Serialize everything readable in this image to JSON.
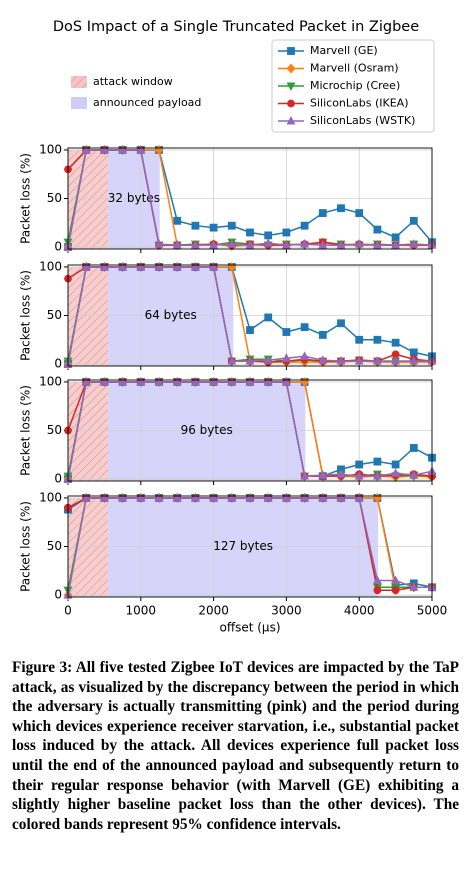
{
  "title": "DoS Impact of a Single Truncated Packet in Zigbee",
  "caption": "Figure 3: All five tested Zigbee IoT devices are impacted by the TaP attack, as visualized by the discrepancy between the period in which the adversary is actually transmitting (pink) and the period during which devices experience receiver starvation, i.e., substantial packet loss induced by the attack. All devices experience full packet loss until the end of the announced payload and subsequently return to their regular response behavior (with Marvell (GE) exhibiting a slightly higher baseline packet loss than the other devices). The colored bands represent 95% confidence intervals.",
  "chart_data": [
    {
      "type": "line",
      "annotation": "32 bytes",
      "ylabel": "Packet loss (%)",
      "grid": true,
      "xlim": [
        0,
        5000
      ],
      "xticks": [
        0,
        1000,
        2000,
        3000,
        4000,
        5000
      ],
      "ylim": [
        -2,
        102
      ],
      "yticks": [
        0,
        50,
        100
      ],
      "regions": [
        {
          "name": "attack window",
          "color": "#f6c4c4",
          "range": [
            0,
            550
          ]
        },
        {
          "name": "announced payload",
          "color": "#cfcdf8",
          "range": [
            550,
            1260
          ]
        }
      ],
      "x": [
        0,
        250,
        500,
        750,
        1000,
        1250,
        1500,
        1750,
        2000,
        2250,
        2500,
        2750,
        3000,
        3250,
        3500,
        3750,
        4000,
        4250,
        4500,
        4750,
        5000
      ],
      "series": [
        {
          "name": "Marvell (GE)",
          "color": "#1f77b4",
          "marker": "s",
          "values": [
            0,
            100,
            100,
            100,
            100,
            100,
            27,
            22,
            20,
            22,
            15,
            12,
            15,
            22,
            35,
            40,
            35,
            18,
            10,
            27,
            5
          ]
        },
        {
          "name": "Marvell (Osram)",
          "color": "#ff7f0e",
          "marker": "D",
          "values": [
            0,
            100,
            100,
            100,
            100,
            100,
            2,
            2,
            3,
            1,
            2,
            2,
            2,
            3,
            2,
            2,
            2,
            2,
            2,
            2,
            2
          ]
        },
        {
          "name": "Microchip (Cree)",
          "color": "#2ca02c",
          "marker": "v",
          "values": [
            5,
            100,
            100,
            100,
            100,
            2,
            2,
            3,
            2,
            5,
            3,
            2,
            3,
            2,
            5,
            3,
            2,
            3,
            2,
            3,
            2
          ]
        },
        {
          "name": "SiliconLabs (IKEA)",
          "color": "#d62728",
          "marker": "o",
          "values": [
            80,
            100,
            100,
            100,
            100,
            2,
            2,
            2,
            3,
            2,
            3,
            2,
            2,
            3,
            5,
            2,
            3,
            2,
            2,
            2,
            2
          ]
        },
        {
          "name": "SiliconLabs (WSTK)",
          "color": "#9467bd",
          "marker": "^",
          "values": [
            0,
            100,
            100,
            100,
            100,
            3,
            2,
            2,
            2,
            3,
            2,
            4,
            2,
            3,
            2,
            2,
            3,
            2,
            2,
            3,
            2
          ]
        }
      ]
    },
    {
      "type": "line",
      "annotation": "64 bytes",
      "ylabel": "Packet loss (%)",
      "grid": true,
      "xlim": [
        0,
        5000
      ],
      "xticks": [
        0,
        1000,
        2000,
        3000,
        4000,
        5000
      ],
      "ylim": [
        -2,
        102
      ],
      "yticks": [
        0,
        50,
        100
      ],
      "regions": [
        {
          "name": "attack window",
          "color": "#f6c4c4",
          "range": [
            0,
            550
          ]
        },
        {
          "name": "announced payload",
          "color": "#cfcdf8",
          "range": [
            550,
            2270
          ]
        }
      ],
      "x": [
        0,
        250,
        500,
        750,
        1000,
        1250,
        1500,
        1750,
        2000,
        2250,
        2500,
        2750,
        3000,
        3250,
        3500,
        3750,
        4000,
        4250,
        4500,
        4750,
        5000
      ],
      "series": [
        {
          "name": "Marvell (GE)",
          "color": "#1f77b4",
          "marker": "s",
          "values": [
            0,
            100,
            100,
            100,
            100,
            100,
            100,
            100,
            100,
            100,
            35,
            48,
            33,
            38,
            30,
            42,
            25,
            25,
            22,
            12,
            8
          ]
        },
        {
          "name": "Marvell (Osram)",
          "color": "#ff7f0e",
          "marker": "D",
          "values": [
            0,
            100,
            100,
            100,
            100,
            100,
            100,
            100,
            100,
            100,
            3,
            2,
            2,
            2,
            2,
            2,
            3,
            2,
            2,
            2,
            2
          ]
        },
        {
          "name": "Microchip (Cree)",
          "color": "#2ca02c",
          "marker": "v",
          "values": [
            3,
            100,
            100,
            100,
            100,
            100,
            100,
            100,
            100,
            3,
            5,
            5,
            3,
            4,
            3,
            3,
            4,
            3,
            3,
            3,
            3
          ]
        },
        {
          "name": "SiliconLabs (IKEA)",
          "color": "#d62728",
          "marker": "o",
          "values": [
            88,
            100,
            100,
            100,
            100,
            100,
            100,
            100,
            100,
            3,
            3,
            2,
            3,
            5,
            3,
            3,
            4,
            3,
            10,
            5,
            3
          ]
        },
        {
          "name": "SiliconLabs (WSTK)",
          "color": "#9467bd",
          "marker": "^",
          "values": [
            0,
            100,
            100,
            100,
            100,
            100,
            100,
            100,
            100,
            3,
            3,
            4,
            6,
            8,
            4,
            3,
            3,
            3,
            3,
            3,
            3
          ]
        }
      ]
    },
    {
      "type": "line",
      "annotation": "96 bytes",
      "ylabel": "Packet loss (%)",
      "grid": true,
      "xlim": [
        0,
        5000
      ],
      "xticks": [
        0,
        1000,
        2000,
        3000,
        4000,
        5000
      ],
      "ylim": [
        -2,
        102
      ],
      "yticks": [
        0,
        50,
        100
      ],
      "regions": [
        {
          "name": "attack window",
          "color": "#f6c4c4",
          "range": [
            0,
            550
          ]
        },
        {
          "name": "announced payload",
          "color": "#cfcdf8",
          "range": [
            550,
            3260
          ]
        }
      ],
      "x": [
        0,
        250,
        500,
        750,
        1000,
        1250,
        1500,
        1750,
        2000,
        2250,
        2500,
        2750,
        3000,
        3250,
        3500,
        3750,
        4000,
        4250,
        4500,
        4750,
        5000
      ],
      "series": [
        {
          "name": "Marvell (GE)",
          "color": "#1f77b4",
          "marker": "s",
          "values": [
            0,
            100,
            100,
            100,
            100,
            100,
            100,
            100,
            100,
            100,
            100,
            100,
            100,
            100,
            3,
            10,
            15,
            18,
            15,
            32,
            22
          ]
        },
        {
          "name": "Marvell (Osram)",
          "color": "#ff7f0e",
          "marker": "D",
          "values": [
            0,
            100,
            100,
            100,
            100,
            100,
            100,
            100,
            100,
            100,
            100,
            100,
            100,
            100,
            3,
            3,
            2,
            3,
            2,
            3,
            2
          ]
        },
        {
          "name": "Microchip (Cree)",
          "color": "#2ca02c",
          "marker": "v",
          "values": [
            3,
            100,
            100,
            100,
            100,
            100,
            100,
            100,
            100,
            100,
            100,
            100,
            100,
            3,
            3,
            4,
            3,
            5,
            3,
            4,
            3
          ]
        },
        {
          "name": "SiliconLabs (IKEA)",
          "color": "#d62728",
          "marker": "o",
          "values": [
            50,
            100,
            100,
            100,
            100,
            100,
            100,
            100,
            100,
            100,
            100,
            100,
            100,
            3,
            3,
            3,
            5,
            3,
            4,
            5,
            3
          ]
        },
        {
          "name": "SiliconLabs (WSTK)",
          "color": "#9467bd",
          "marker": "^",
          "values": [
            0,
            100,
            100,
            100,
            100,
            100,
            100,
            100,
            100,
            100,
            100,
            100,
            100,
            3,
            4,
            5,
            3,
            3,
            6,
            4,
            8
          ]
        }
      ]
    },
    {
      "type": "line",
      "annotation": "127 bytes",
      "ylabel": "Packet loss (%)",
      "xlabel": "offset (μs)",
      "grid": true,
      "xlim": [
        0,
        5000
      ],
      "xticks": [
        0,
        1000,
        2000,
        3000,
        4000,
        5000
      ],
      "ylim": [
        -2,
        102
      ],
      "yticks": [
        0,
        50,
        100
      ],
      "regions": [
        {
          "name": "attack window",
          "color": "#f6c4c4",
          "range": [
            0,
            550
          ]
        },
        {
          "name": "announced payload",
          "color": "#cfcdf8",
          "range": [
            550,
            4260
          ]
        }
      ],
      "x": [
        0,
        250,
        500,
        750,
        1000,
        1250,
        1500,
        1750,
        2000,
        2250,
        2500,
        2750,
        3000,
        3250,
        3500,
        3750,
        4000,
        4250,
        4500,
        4750,
        5000
      ],
      "series": [
        {
          "name": "Marvell (GE)",
          "color": "#1f77b4",
          "marker": "s",
          "values": [
            88,
            100,
            100,
            100,
            100,
            100,
            100,
            100,
            100,
            100,
            100,
            100,
            100,
            100,
            100,
            100,
            100,
            100,
            10,
            12,
            8
          ]
        },
        {
          "name": "Marvell (Osram)",
          "color": "#ff7f0e",
          "marker": "D",
          "values": [
            0,
            100,
            100,
            100,
            100,
            100,
            100,
            100,
            100,
            100,
            100,
            100,
            100,
            100,
            100,
            100,
            100,
            100,
            5,
            8,
            8
          ]
        },
        {
          "name": "Microchip (Cree)",
          "color": "#2ca02c",
          "marker": "v",
          "values": [
            5,
            100,
            100,
            100,
            100,
            100,
            100,
            100,
            100,
            100,
            100,
            100,
            100,
            100,
            100,
            100,
            100,
            8,
            8,
            8,
            8
          ]
        },
        {
          "name": "SiliconLabs (IKEA)",
          "color": "#d62728",
          "marker": "o",
          "values": [
            90,
            100,
            100,
            100,
            100,
            100,
            100,
            100,
            100,
            100,
            100,
            100,
            100,
            100,
            100,
            100,
            100,
            5,
            5,
            8,
            8
          ]
        },
        {
          "name": "SiliconLabs (WSTK)",
          "color": "#9467bd",
          "marker": "^",
          "values": [
            0,
            100,
            100,
            100,
            100,
            100,
            100,
            100,
            100,
            100,
            100,
            100,
            100,
            100,
            100,
            100,
            100,
            15,
            15,
            8,
            8
          ]
        }
      ]
    }
  ]
}
